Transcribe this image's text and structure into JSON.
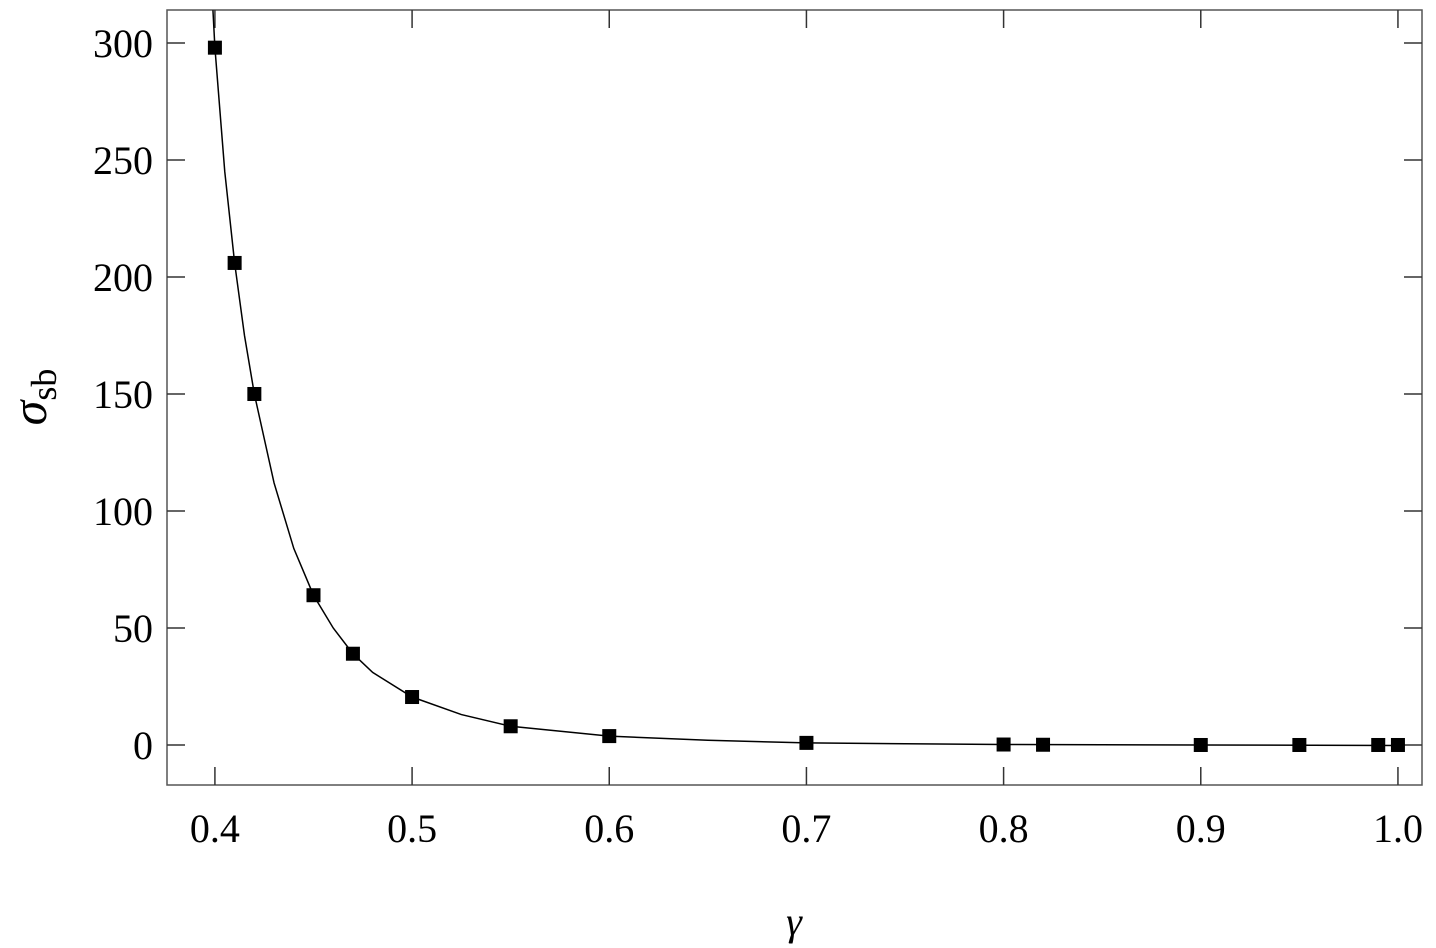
{
  "chart_data": {
    "type": "scatter",
    "xlabel": "γ",
    "ylabel": "σ",
    "ylabel_sub": "sb",
    "x": [
      0.4,
      0.41,
      0.42,
      0.45,
      0.47,
      0.5,
      0.55,
      0.6,
      0.7,
      0.8,
      0.82,
      0.9,
      0.95,
      0.99,
      1.0
    ],
    "y": [
      298,
      206,
      150,
      64,
      39,
      20.5,
      8,
      3.8,
      0.9,
      0.2,
      0.1,
      0,
      0,
      0,
      0
    ],
    "color": "#000000",
    "curve": {
      "x": [
        0.399,
        0.4,
        0.405,
        0.41,
        0.415,
        0.42,
        0.43,
        0.44,
        0.45,
        0.46,
        0.47,
        0.48,
        0.5,
        0.525,
        0.55,
        0.6,
        0.65,
        0.7,
        0.8,
        0.9,
        1.0
      ],
      "y": [
        314,
        298,
        245,
        206,
        175,
        150,
        112,
        84,
        64,
        50,
        39,
        31,
        20.5,
        13,
        8,
        3.8,
        2,
        0.9,
        0.2,
        0,
        -0.2
      ]
    },
    "xlim": [
      0.3757,
      1.0122
    ],
    "ylim": [
      -17.1,
      314.1
    ],
    "xticks": [
      0.4,
      0.5,
      0.6,
      0.7,
      0.8,
      0.9,
      {
        "value": 1,
        "label": "1.0"
      }
    ],
    "yticks": [
      0,
      50,
      100,
      150,
      200,
      250,
      300
    ]
  }
}
